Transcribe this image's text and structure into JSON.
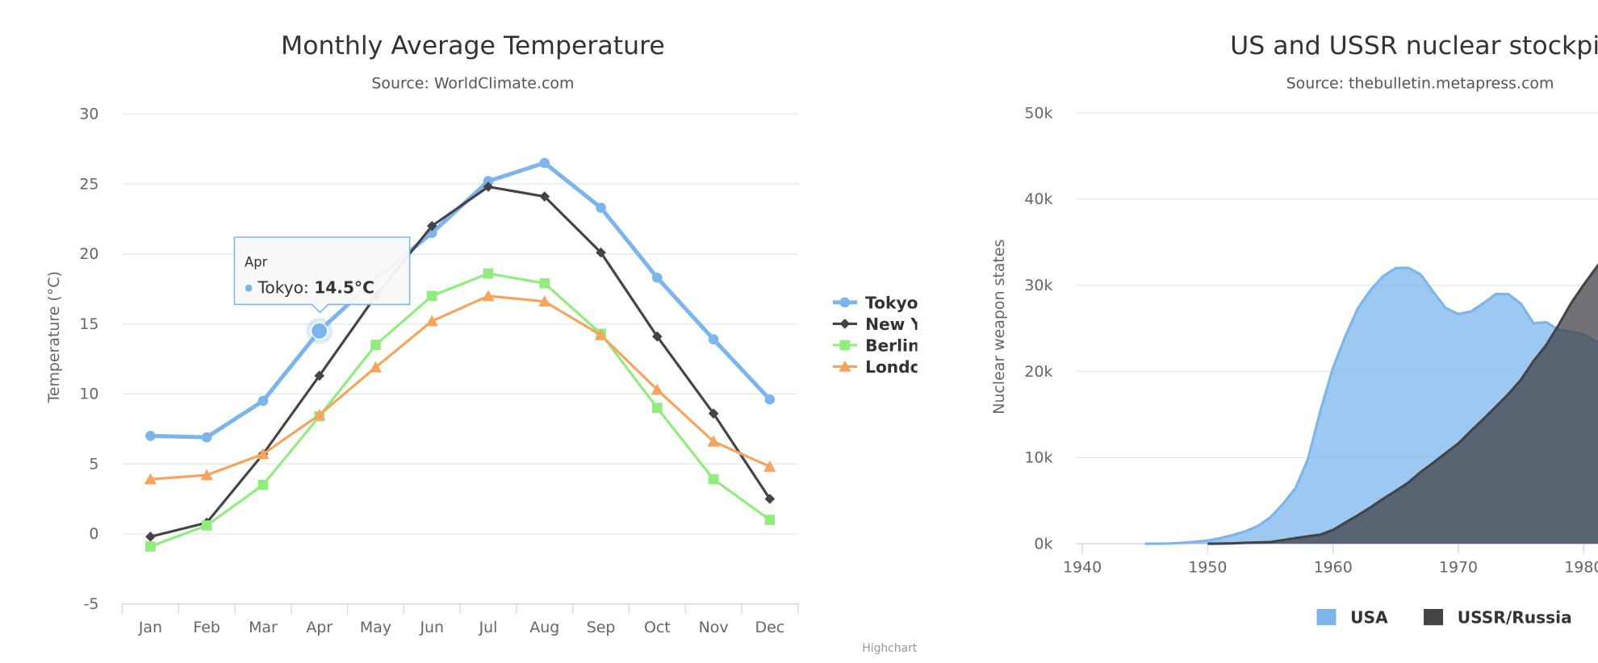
{
  "chart_data": [
    {
      "type": "line",
      "title": "Monthly Average Temperature",
      "subtitle": "Source: WorldClimate.com",
      "xlabel": "",
      "ylabel": "Temperature (°C)",
      "ylim": [
        -5,
        30
      ],
      "yticks": [
        -5,
        0,
        5,
        10,
        15,
        20,
        25,
        30
      ],
      "grid": true,
      "legend": "right",
      "categories": [
        "Jan",
        "Feb",
        "Mar",
        "Apr",
        "May",
        "Jun",
        "Jul",
        "Aug",
        "Sep",
        "Oct",
        "Nov",
        "Dec"
      ],
      "series": [
        {
          "name": "Tokyo",
          "color": "#7cb5ec",
          "marker": "circle",
          "values": [
            7.0,
            6.9,
            9.5,
            14.5,
            18.2,
            21.5,
            25.2,
            26.5,
            23.3,
            18.3,
            13.9,
            9.6
          ]
        },
        {
          "name": "New York",
          "color": "#434348",
          "marker": "diamond",
          "values": [
            -0.2,
            0.8,
            5.7,
            11.3,
            17.0,
            22.0,
            24.8,
            24.1,
            20.1,
            14.1,
            8.6,
            2.5
          ]
        },
        {
          "name": "Berlin",
          "color": "#90ed7d",
          "marker": "square",
          "values": [
            -0.9,
            0.6,
            3.5,
            8.4,
            13.5,
            17.0,
            18.6,
            17.9,
            14.3,
            9.0,
            3.9,
            1.0
          ]
        },
        {
          "name": "London",
          "color": "#f7a35c",
          "marker": "triangle",
          "values": [
            3.9,
            4.2,
            5.7,
            8.5,
            11.9,
            15.2,
            17.0,
            16.6,
            14.2,
            10.3,
            6.6,
            4.8
          ]
        }
      ],
      "tooltip": {
        "category": "Apr",
        "series": "Tokyo",
        "label": "Tokyo: ",
        "value": "14.5°C"
      },
      "credits": "Highcharts.com"
    },
    {
      "type": "area",
      "title": "US and USSR nuclear stockpiles",
      "subtitle": "Source: thebulletin.metapress.com",
      "xlabel": "",
      "ylabel": "Nuclear weapon states",
      "ylim": [
        0,
        50000
      ],
      "yticks": [
        "0k",
        "10k",
        "20k",
        "30k",
        "40k",
        "50k"
      ],
      "xticks": [
        1940,
        1950,
        1960,
        1970,
        1980
      ],
      "grid": true,
      "legend": "bottom",
      "x_start": 1940,
      "series": [
        {
          "name": "USA",
          "color": "#7cb5ec",
          "values": [
            null,
            null,
            null,
            null,
            null,
            6,
            11,
            32,
            110,
            235,
            369,
            640,
            1005,
            1436,
            2063,
            3057,
            4618,
            6444,
            9822,
            15468,
            20434,
            24126,
            27387,
            29459,
            31056,
            31982,
            32040,
            31233,
            29224,
            27342,
            26662,
            26956,
            27912,
            28999,
            28965,
            27826,
            25579,
            25722,
            24826,
            24605,
            24304,
            23464,
            23708
          ]
        },
        {
          "name": "USSR/Russia",
          "color": "#434348",
          "values": [
            null,
            null,
            null,
            null,
            null,
            null,
            null,
            null,
            null,
            null,
            5,
            25,
            50,
            120,
            150,
            200,
            426,
            660,
            869,
            1060,
            1605,
            2471,
            3322,
            4238,
            5221,
            6129,
            7089,
            8339,
            9399,
            10538,
            11643,
            13092,
            14478,
            15915,
            17385,
            19055,
            21205,
            23044,
            25393,
            27935,
            30062,
            32049,
            33952
          ]
        }
      ]
    }
  ]
}
